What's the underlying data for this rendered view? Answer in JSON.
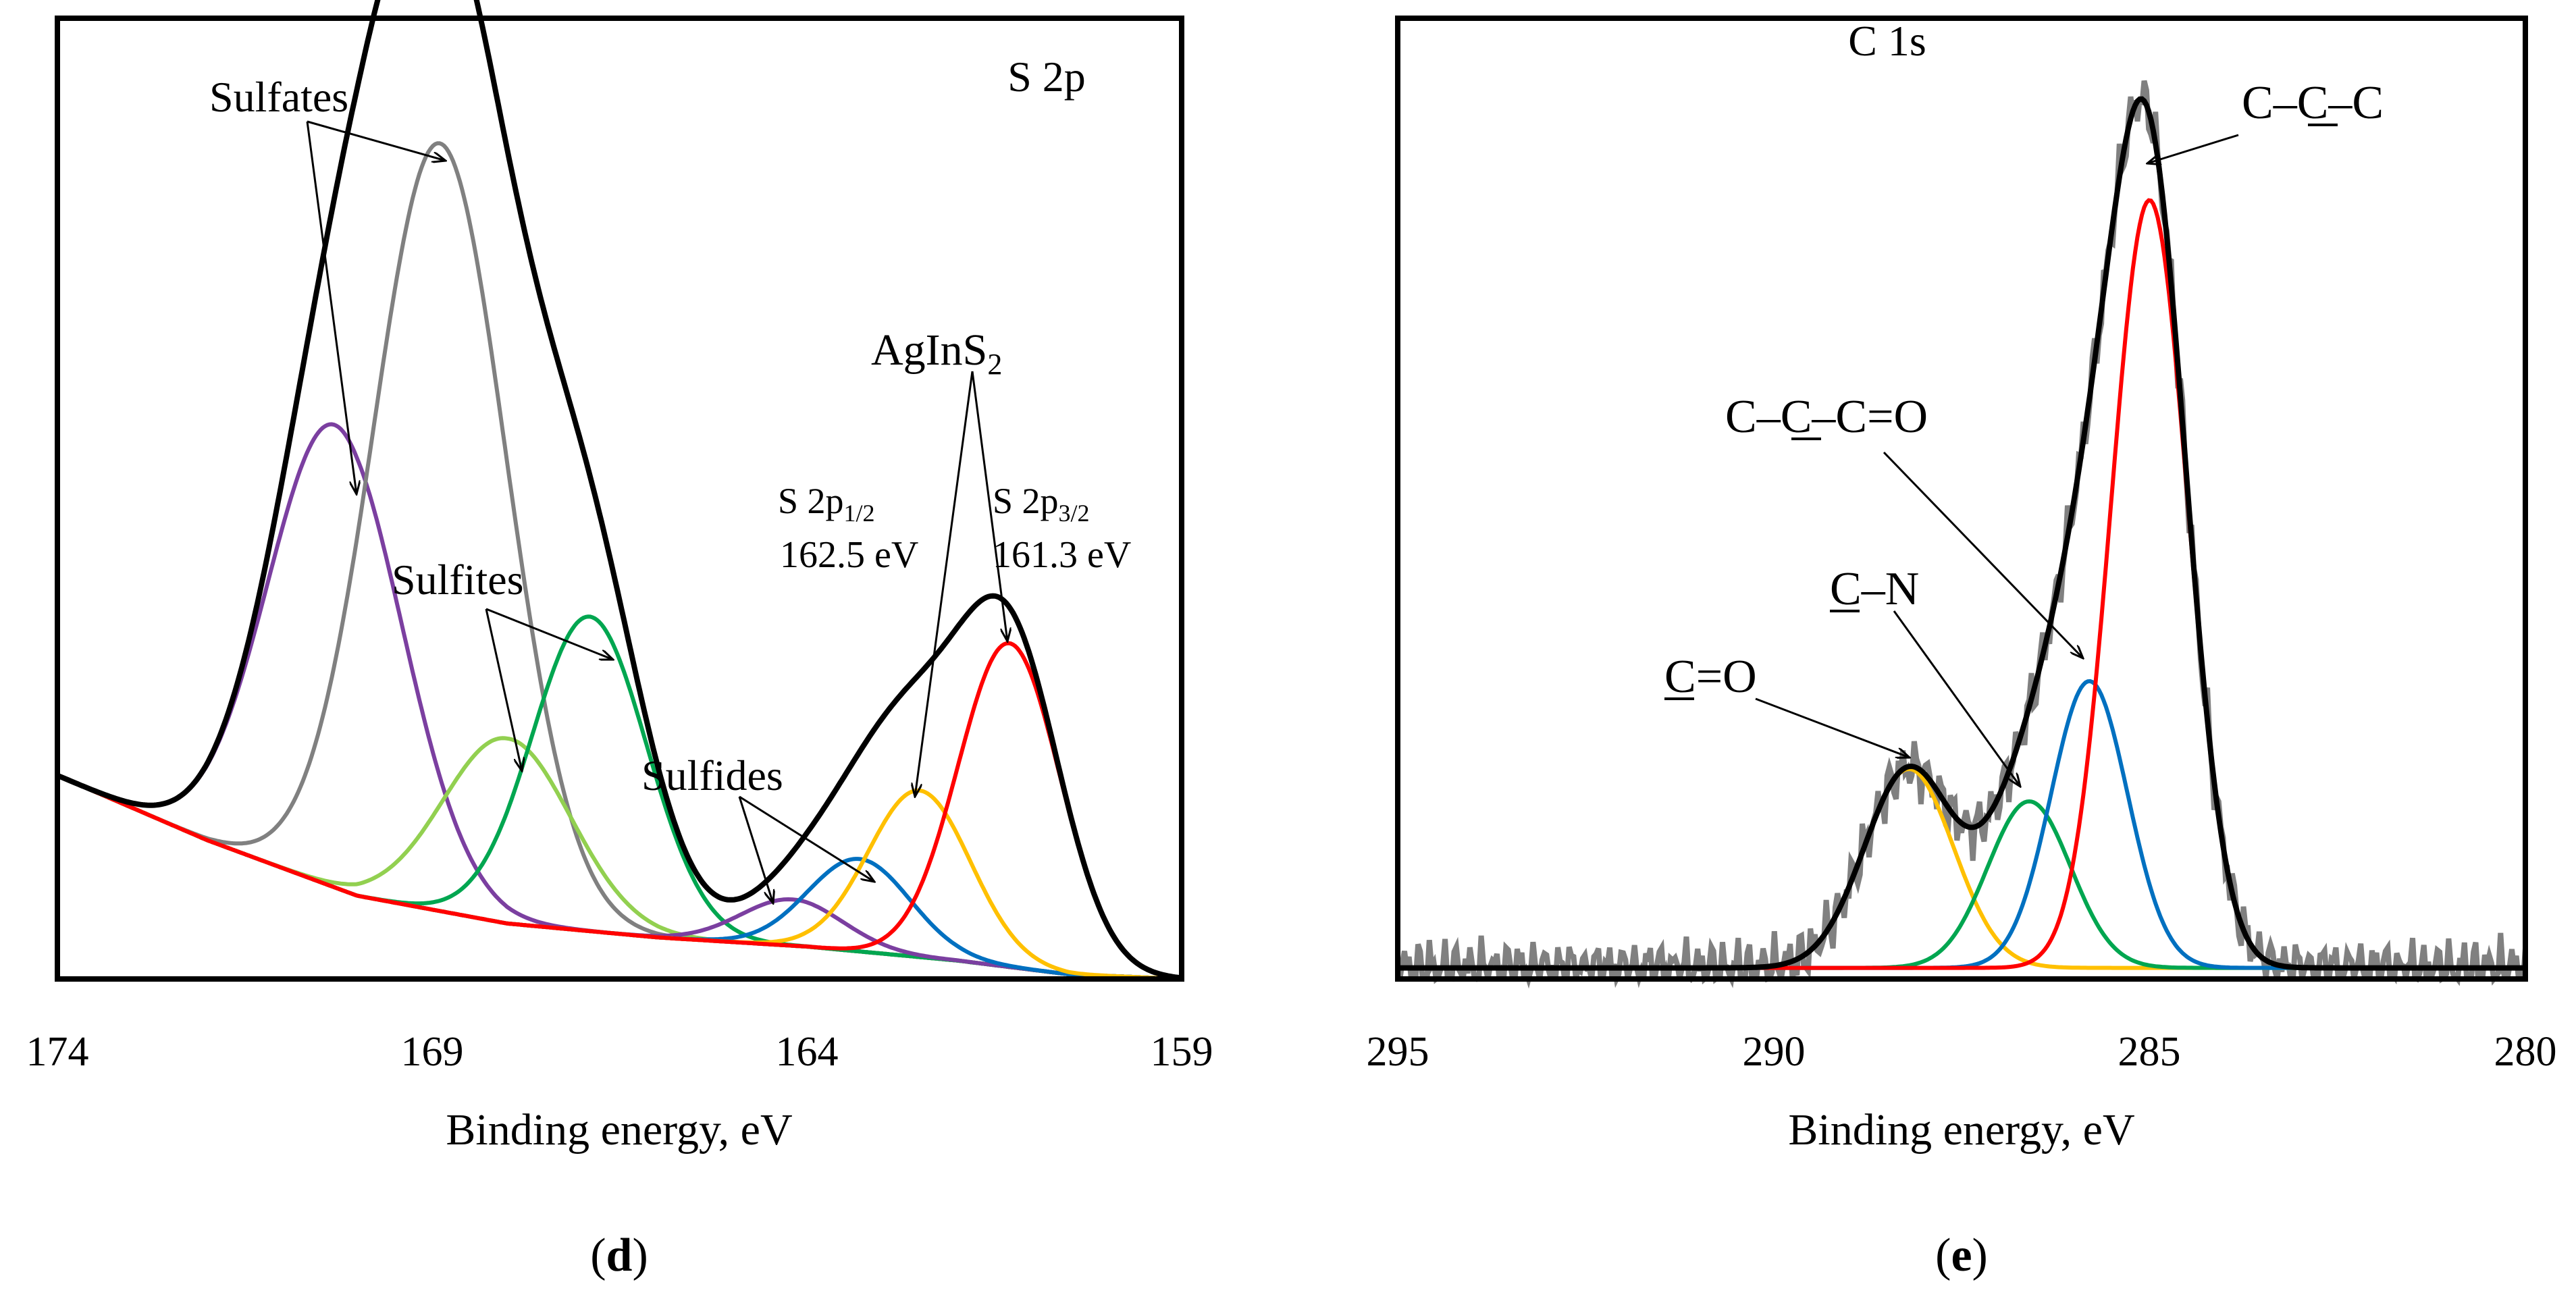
{
  "chart_data": [
    {
      "type": "line",
      "panel_label": "d",
      "title": "S 2p",
      "xlabel": "Binding energy, eV",
      "ylabel": "",
      "xlim": [
        174,
        159
      ],
      "x_reversed": true,
      "x_ticks": [
        "174",
        "169",
        "164",
        "159"
      ],
      "ylim": [
        0,
        1.0
      ],
      "grid": false,
      "components": [
        {
          "name": "Sulfates 1",
          "color": "#7b3fa0",
          "center": 170.3,
          "fwhm": 2.1,
          "height": 0.5
        },
        {
          "name": "Sulfates 2",
          "color": "#808080",
          "center": 168.9,
          "fwhm": 2.1,
          "height": 0.83
        },
        {
          "name": "Sulfites 1",
          "color": "#92d050",
          "center": 168.0,
          "fwhm": 2.0,
          "height": 0.2
        },
        {
          "name": "Sulfites 2",
          "color": "#00a650",
          "center": 166.9,
          "fwhm": 1.8,
          "height": 0.34
        },
        {
          "name": "Sulfides 1",
          "color": "#7b3fa0",
          "center": 164.2,
          "fwhm": 1.6,
          "height": 0.05
        },
        {
          "name": "Sulfides 2",
          "color": "#0070c0",
          "center": 163.3,
          "fwhm": 1.6,
          "height": 0.1
        },
        {
          "name": "AgInS2 S 2p1/2",
          "color": "#ffc000",
          "center": 162.5,
          "fwhm": 1.6,
          "height": 0.18
        },
        {
          "name": "AgInS2 S 2p3/2",
          "color": "#ff0000",
          "center": 161.3,
          "fwhm": 1.6,
          "height": 0.35
        }
      ],
      "background": {
        "color": "#ff0000",
        "points": [
          [
            174,
            0.22
          ],
          [
            172,
            0.15
          ],
          [
            170,
            0.09
          ],
          [
            168,
            0.06
          ],
          [
            166,
            0.045
          ],
          [
            164,
            0.035
          ],
          [
            162,
            0.02
          ],
          [
            160.5,
            0.005
          ],
          [
            159,
            0.0
          ]
        ]
      },
      "envelope_color": "#000000",
      "annotations": {
        "sulfates": "Sulfates",
        "sulfites": "Sulfites",
        "sulfides": "Sulfides",
        "aginS2_base": "AgInS",
        "aginS2_sub": "2",
        "s2p12_label": "S 2p",
        "s2p12_sub": "1/2",
        "s2p12_energy": "162.5 eV",
        "s2p32_label": "S 2p",
        "s2p32_sub": "3/2",
        "s2p32_energy": "161.3 eV"
      }
    },
    {
      "type": "line",
      "panel_label": "e",
      "title": "C 1s",
      "xlabel": "Binding energy, eV",
      "ylabel": "",
      "xlim": [
        295,
        280
      ],
      "x_reversed": true,
      "x_ticks": [
        "295",
        "290",
        "285",
        "280"
      ],
      "ylim": [
        0,
        1.0
      ],
      "grid": false,
      "components": [
        {
          "name": "C=O",
          "color": "#ffc000",
          "center": 288.2,
          "fwhm": 1.4,
          "height": 0.215
        },
        {
          "name": "C-N",
          "color": "#00a650",
          "center": 286.6,
          "fwhm": 1.3,
          "height": 0.18
        },
        {
          "name": "C-C-C=O",
          "color": "#0070c0",
          "center": 285.8,
          "fwhm": 1.2,
          "height": 0.31
        },
        {
          "name": "C-C-C",
          "color": "#ff0000",
          "center": 285.0,
          "fwhm": 1.2,
          "height": 0.83
        }
      ],
      "baseline": 0.012,
      "envelope_color": "#000000",
      "raw_color": "#808080",
      "annotations": {
        "ccc": "C–C–C",
        "cccO": "C–C–C=O",
        "cN": "C–N",
        "cO": "C=O"
      }
    }
  ],
  "panel_labels": {
    "d": "d",
    "e": "e"
  }
}
